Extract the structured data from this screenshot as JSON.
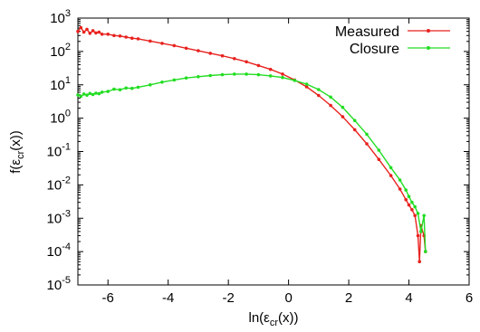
{
  "chart_data": {
    "type": "line",
    "xlabel": {
      "prefix": "ln(ε",
      "sub": "cr",
      "suffix": "(x))"
    },
    "ylabel": {
      "prefix": "f(ε",
      "sub": "cr",
      "suffix": "(x))"
    },
    "xlim": [
      -7,
      6
    ],
    "ylim_log10": [
      -5,
      3
    ],
    "y_scale": "log",
    "grid": false,
    "legend_position": "top-right",
    "x_ticks": [
      "-6",
      "-4",
      "-2",
      "0",
      "2",
      "4",
      "6"
    ],
    "x_tick_values": [
      -6,
      -4,
      -2,
      0,
      2,
      4,
      6
    ],
    "y_ticks": [
      {
        "exp": -5,
        "base": "10",
        "sup": "-5"
      },
      {
        "exp": -4,
        "base": "10",
        "sup": "-4"
      },
      {
        "exp": -3,
        "base": "10",
        "sup": "-3"
      },
      {
        "exp": -2,
        "base": "10",
        "sup": "-2"
      },
      {
        "exp": -1,
        "base": "10",
        "sup": "-1"
      },
      {
        "exp": 0,
        "base": "10",
        "sup": "0"
      },
      {
        "exp": 1,
        "base": "10",
        "sup": "1"
      },
      {
        "exp": 2,
        "base": "10",
        "sup": "2"
      },
      {
        "exp": 3,
        "base": "10",
        "sup": "3"
      }
    ],
    "series": [
      {
        "name": "Measured",
        "color": "#e8221e",
        "x": [
          -7.0,
          -6.9,
          -6.8,
          -6.7,
          -6.6,
          -6.5,
          -6.4,
          -6.3,
          -6.2,
          -6.0,
          -5.8,
          -5.6,
          -5.4,
          -5.2,
          -5.0,
          -4.6,
          -4.2,
          -3.8,
          -3.4,
          -3.0,
          -2.6,
          -2.2,
          -1.8,
          -1.4,
          -1.0,
          -0.6,
          -0.2,
          0.2,
          0.6,
          1.0,
          1.4,
          1.8,
          2.2,
          2.6,
          3.0,
          3.4,
          3.7,
          3.9,
          4.0,
          4.1,
          4.2,
          4.3,
          4.35,
          4.4,
          4.5,
          4.55
        ],
        "y": [
          400,
          520,
          380,
          460,
          350,
          420,
          360,
          380,
          330,
          330,
          300,
          290,
          270,
          250,
          240,
          205,
          175,
          150,
          125,
          105,
          88,
          74,
          61,
          49,
          38,
          29,
          21,
          14,
          8.7,
          4.8,
          2.4,
          1.1,
          0.45,
          0.17,
          0.058,
          0.019,
          0.0075,
          0.0036,
          0.0025,
          0.0018,
          0.0012,
          0.0003,
          5e-05,
          0.0006,
          0.0003,
          0.0001
        ]
      },
      {
        "name": "Closure",
        "color": "#22dd22",
        "x": [
          -7.0,
          -6.9,
          -6.8,
          -6.7,
          -6.6,
          -6.5,
          -6.4,
          -6.3,
          -6.2,
          -6.0,
          -5.8,
          -5.6,
          -5.4,
          -5.2,
          -5.0,
          -4.6,
          -4.2,
          -3.8,
          -3.4,
          -3.0,
          -2.6,
          -2.2,
          -1.8,
          -1.4,
          -1.0,
          -0.6,
          -0.2,
          0.2,
          0.6,
          1.0,
          1.4,
          1.8,
          2.2,
          2.6,
          3.0,
          3.4,
          3.7,
          3.9,
          4.0,
          4.1,
          4.2,
          4.3,
          4.4,
          4.5,
          4.55
        ],
        "y": [
          5.0,
          4.5,
          5.3,
          4.9,
          5.5,
          5.1,
          5.6,
          5.4,
          6.0,
          6.3,
          7.4,
          7.1,
          8.0,
          7.8,
          8.5,
          10.0,
          12.0,
          14.0,
          16.0,
          17.5,
          19.0,
          20.0,
          21.0,
          21.0,
          20.0,
          18.5,
          16.5,
          13.5,
          10.5,
          7.2,
          4.3,
          2.1,
          0.85,
          0.33,
          0.11,
          0.033,
          0.014,
          0.007,
          0.0045,
          0.003,
          0.0022,
          0.0014,
          0.0004,
          0.0012,
          0.0001
        ]
      }
    ]
  }
}
